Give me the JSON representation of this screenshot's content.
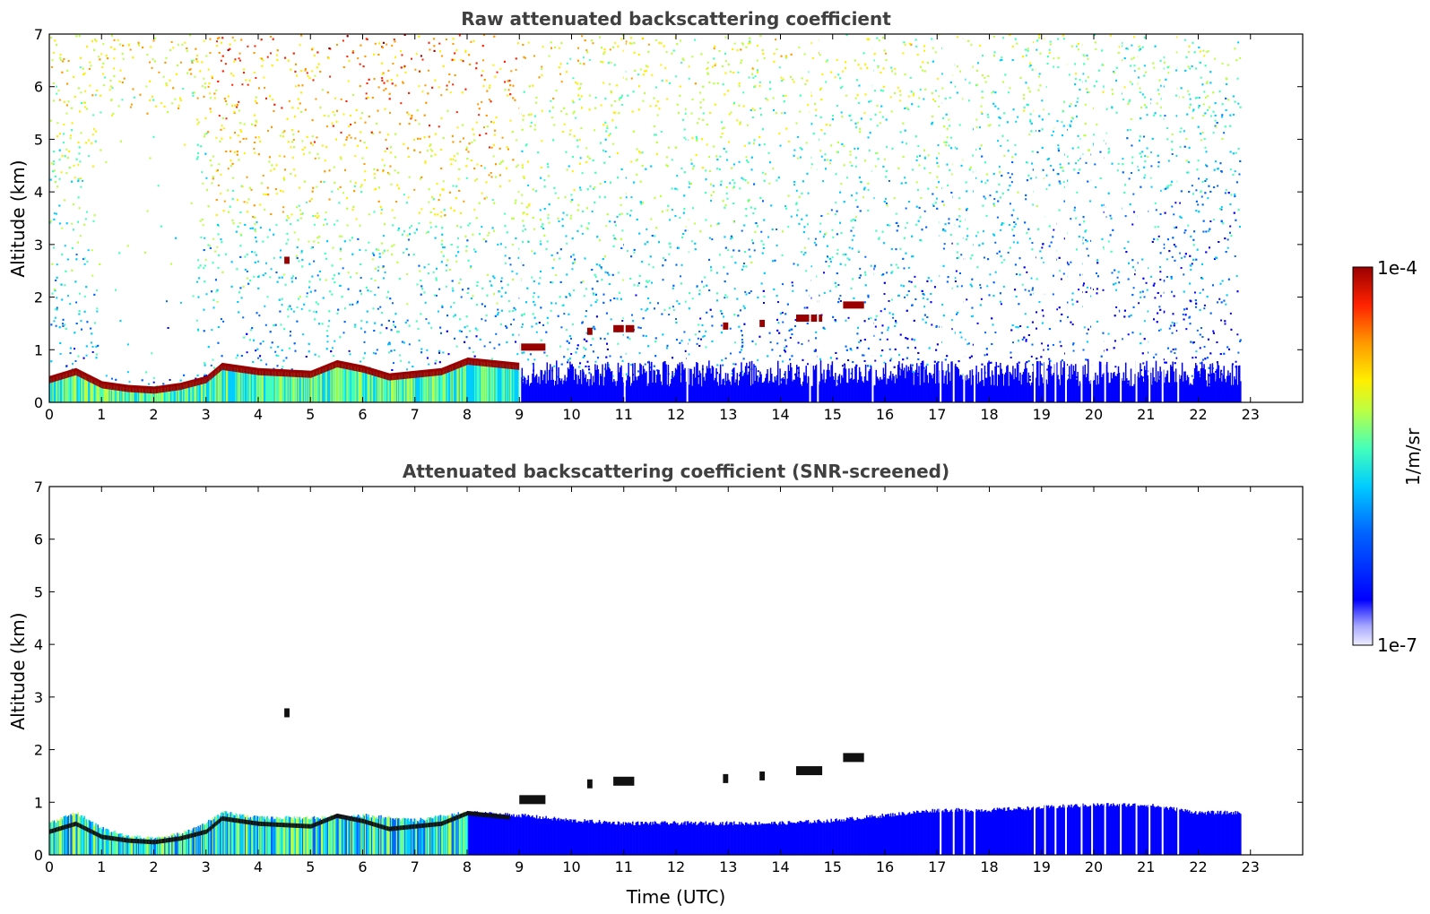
{
  "figure": {
    "xlabel": "Time (UTC)"
  },
  "chart_data": [
    {
      "type": "heatmap",
      "title": "Raw attenuated backscattering coefficient",
      "xlabel": "",
      "ylabel": "Altitude (km)",
      "xlim": [
        0,
        24
      ],
      "ylim": [
        0,
        7
      ],
      "xticks": [
        "0",
        "1",
        "2",
        "3",
        "4",
        "5",
        "6",
        "7",
        "8",
        "9",
        "10",
        "11",
        "12",
        "13",
        "14",
        "15",
        "16",
        "17",
        "18",
        "19",
        "20",
        "21",
        "22",
        "23"
      ],
      "yticks": [
        "0",
        "1",
        "2",
        "3",
        "4",
        "5",
        "6",
        "7"
      ],
      "data_end_time": 22.8,
      "boundary_layer_top_km": [
        [
          0.0,
          0.45
        ],
        [
          0.5,
          0.6
        ],
        [
          1.0,
          0.35
        ],
        [
          1.5,
          0.28
        ],
        [
          2.0,
          0.25
        ],
        [
          2.5,
          0.32
        ],
        [
          3.0,
          0.45
        ],
        [
          3.3,
          0.7
        ],
        [
          4.0,
          0.6
        ],
        [
          5.0,
          0.55
        ],
        [
          5.5,
          0.75
        ],
        [
          6.0,
          0.65
        ],
        [
          6.5,
          0.5
        ],
        [
          7.0,
          0.55
        ],
        [
          7.5,
          0.6
        ],
        [
          8.0,
          0.8
        ],
        [
          8.5,
          0.75
        ],
        [
          9.0,
          0.7
        ]
      ],
      "cloud_layers": [
        {
          "t": [
            4.5,
            4.6
          ],
          "alt_km": 2.7
        },
        {
          "t": [
            9.0,
            9.5
          ],
          "alt_km": 1.05
        },
        {
          "t": [
            10.3,
            10.4
          ],
          "alt_km": 1.35
        },
        {
          "t": [
            10.8,
            11.2
          ],
          "alt_km": 1.4
        },
        {
          "t": [
            12.9,
            13.0
          ],
          "alt_km": 1.45
        },
        {
          "t": [
            13.6,
            13.7
          ],
          "alt_km": 1.5
        },
        {
          "t": [
            14.3,
            14.8
          ],
          "alt_km": 1.6
        },
        {
          "t": [
            15.2,
            15.6
          ],
          "alt_km": 1.85
        }
      ],
      "data_gaps_utc": [
        9.0,
        11.0,
        12.2,
        14.55,
        14.7,
        15.75,
        17.05,
        17.3,
        17.5,
        17.7,
        18.85,
        19.05,
        19.25,
        19.45,
        19.75,
        19.95,
        20.2,
        20.5,
        20.8,
        21.05,
        21.3,
        21.6
      ]
    },
    {
      "type": "heatmap",
      "title": "Attenuated backscattering coefficient (SNR-screened)",
      "xlabel": "Time (UTC)",
      "ylabel": "Altitude (km)",
      "xlim": [
        0,
        24
      ],
      "ylim": [
        0,
        7
      ],
      "xticks": [
        "0",
        "1",
        "2",
        "3",
        "4",
        "5",
        "6",
        "7",
        "8",
        "9",
        "10",
        "11",
        "12",
        "13",
        "14",
        "15",
        "16",
        "17",
        "18",
        "19",
        "20",
        "21",
        "22",
        "23"
      ],
      "yticks": [
        "0",
        "1",
        "2",
        "3",
        "4",
        "5",
        "6",
        "7"
      ],
      "data_end_time": 22.8,
      "screened_top_km": [
        [
          0.0,
          0.6
        ],
        [
          0.5,
          0.8
        ],
        [
          1.0,
          0.5
        ],
        [
          1.5,
          0.35
        ],
        [
          2.0,
          0.3
        ],
        [
          2.5,
          0.4
        ],
        [
          3.0,
          0.6
        ],
        [
          3.3,
          0.8
        ],
        [
          4.0,
          0.7
        ],
        [
          5.0,
          0.7
        ],
        [
          6.0,
          0.75
        ],
        [
          7.0,
          0.65
        ],
        [
          8.0,
          0.8
        ],
        [
          9.0,
          0.75
        ],
        [
          10.0,
          0.65
        ],
        [
          11.0,
          0.6
        ],
        [
          12.0,
          0.6
        ],
        [
          14.0,
          0.6
        ],
        [
          15.0,
          0.65
        ],
        [
          16.0,
          0.75
        ],
        [
          17.0,
          0.85
        ],
        [
          18.0,
          0.85
        ],
        [
          19.0,
          0.9
        ],
        [
          20.0,
          0.95
        ],
        [
          21.0,
          0.95
        ],
        [
          22.0,
          0.8
        ],
        [
          22.8,
          0.8
        ]
      ]
    }
  ],
  "colorbar": {
    "label": "1/m/sr",
    "max_label": "1e-4",
    "min_label": "1e-7",
    "colors": [
      "#eeeeff",
      "#a8a8ff",
      "#0000ff",
      "#0066ff",
      "#00ccff",
      "#44ffbb",
      "#bbff44",
      "#ffee00",
      "#ff9900",
      "#ff2200",
      "#990000"
    ]
  }
}
